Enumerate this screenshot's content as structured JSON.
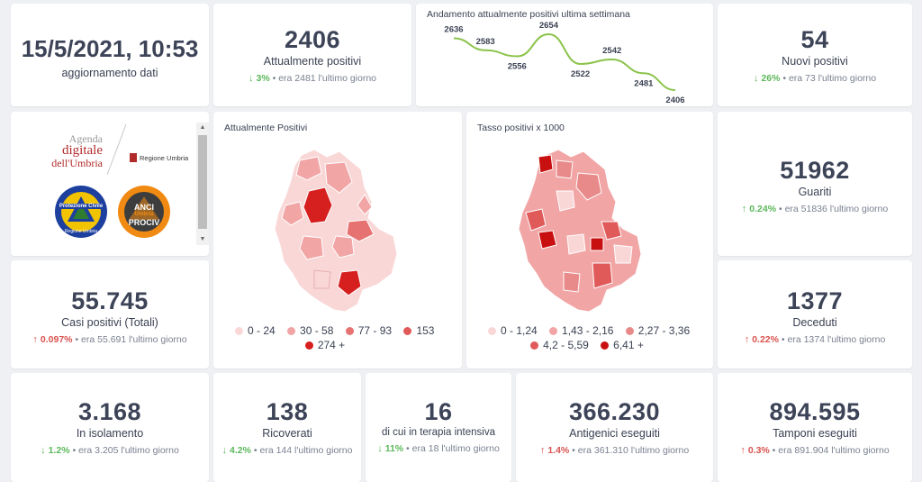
{
  "update": {
    "datetime": "15/5/2021, 10:53",
    "label": "aggiornamento dati"
  },
  "positivi": {
    "value": "2406",
    "label": "Attualmente positivi",
    "pct": "3%",
    "prev": "era 2481 l'ultimo giorno",
    "trend": "down"
  },
  "trend_chart": {
    "title": "Andamento attualmente positivi ultima settimana",
    "chart_data": {
      "type": "line",
      "values": [
        2636,
        2583,
        2556,
        2654,
        2522,
        2542,
        2481,
        2406
      ],
      "labels": [
        "2636",
        "2583",
        "2556",
        "2654",
        "2522",
        "2542",
        "2481",
        "2406"
      ],
      "color": "#8bc34a"
    }
  },
  "nuovi": {
    "value": "54",
    "label": "Nuovi positivi",
    "pct": "26%",
    "prev": "era 73 l'ultimo giorno",
    "trend": "down"
  },
  "logos": {
    "agenda_line1": "Agenda",
    "agenda_line2": "digitale",
    "agenda_line3": "dell'Umbria",
    "regione": "Regione Umbria",
    "protezione": "Protezione Civile",
    "protezione_sub": "Regione Umbria",
    "anci": "ANCI",
    "anci_sub": "Umbria",
    "prociv": "PROCIV"
  },
  "map1": {
    "title": "Attualmente Positivi",
    "legend": [
      {
        "label": "0 - 24",
        "color": "#f9d7d7"
      },
      {
        "label": "30 - 58",
        "color": "#f1a5a5"
      },
      {
        "label": "77 - 93",
        "color": "#e67272"
      },
      {
        "label": "153",
        "color": "#e05a5a"
      },
      {
        "label": "274 +",
        "color": "#d61f1f"
      }
    ]
  },
  "map2": {
    "title": "Tasso positivi x 1000",
    "legend": [
      {
        "label": "0 - 1,24",
        "color": "#f9d7d7"
      },
      {
        "label": "1,43 - 2,16",
        "color": "#f1a5a5"
      },
      {
        "label": "2,27 - 3,36",
        "color": "#e88a8a"
      },
      {
        "label": "4,2 - 5,59",
        "color": "#e05a5a"
      },
      {
        "label": "6,41 +",
        "color": "#c91010"
      }
    ]
  },
  "guariti": {
    "value": "51962",
    "label": "Guariti",
    "pct": "0.24%",
    "prev": "era 51836 l'ultimo giorno",
    "trend": "up"
  },
  "casi": {
    "value": "55.745",
    "label": "Casi positivi (Totali)",
    "pct": "0.097%",
    "prev": "era 55.691 l'ultimo giorno",
    "trend": "up"
  },
  "deceduti": {
    "value": "1377",
    "label": "Deceduti",
    "pct": "0.22%",
    "prev": "era 1374 l'ultimo giorno",
    "trend": "up"
  },
  "isolamento": {
    "value": "3.168",
    "label": "In isolamento",
    "pct": "1.2%",
    "prev": "era 3.205 l'ultimo giorno",
    "trend": "down"
  },
  "ricoverati": {
    "value": "138",
    "label": "Ricoverati",
    "pct": "4.2%",
    "prev": "era 144 l'ultimo giorno",
    "trend": "down"
  },
  "terapia": {
    "value": "16",
    "label": "di cui in terapia intensiva",
    "pct": "11%",
    "prev": "era 18 l'ultimo giorno",
    "trend": "down"
  },
  "antigenici": {
    "value": "366.230",
    "label": "Antigenici eseguiti",
    "pct": "1.4%",
    "prev": "era 361.310 l'ultimo giorno",
    "trend": "up"
  },
  "tamponi": {
    "value": "894.595",
    "label": "Tamponi eseguiti",
    "pct": "0.3%",
    "prev": "era 891.904 l'ultimo giorno",
    "trend": "up"
  },
  "icons": {
    "up": "arrow-up-icon",
    "down": "arrow-down-icon"
  },
  "colors": {
    "up": "#d9534f",
    "down": "#5cb85c",
    "line": "#8bc34a"
  }
}
